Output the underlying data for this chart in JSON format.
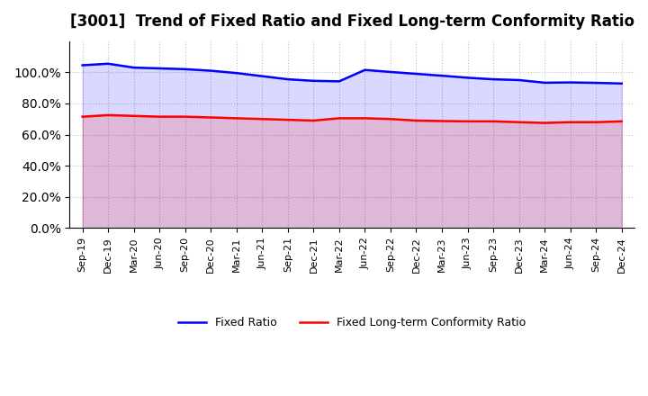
{
  "title": "[3001]  Trend of Fixed Ratio and Fixed Long-term Conformity Ratio",
  "fixed_ratio": [
    104.5,
    105.5,
    103.0,
    102.5,
    102.0,
    101.0,
    99.5,
    97.5,
    95.5,
    94.5,
    94.2,
    101.5,
    100.2,
    99.0,
    97.8,
    96.5,
    95.5,
    95.0,
    93.3,
    93.5,
    93.2,
    92.8
  ],
  "fixed_lt_ratio": [
    71.5,
    72.5,
    72.0,
    71.5,
    71.5,
    71.0,
    70.5,
    70.0,
    69.5,
    69.0,
    70.5,
    70.5,
    70.0,
    69.0,
    68.7,
    68.5,
    68.5,
    68.0,
    67.5,
    68.0,
    68.0,
    68.5
  ],
  "x_labels": [
    "Sep-19",
    "Dec-19",
    "Mar-20",
    "Jun-20",
    "Sep-20",
    "Dec-20",
    "Mar-21",
    "Jun-21",
    "Sep-21",
    "Dec-21",
    "Mar-22",
    "Jun-22",
    "Sep-22",
    "Dec-22",
    "Mar-23",
    "Jun-23",
    "Sep-23",
    "Dec-23",
    "Mar-24",
    "Jun-24",
    "Sep-24",
    "Dec-24"
  ],
  "fixed_ratio_color": "#0000FF",
  "fixed_lt_ratio_color": "#FF0000",
  "background_color": "#FFFFFF",
  "grid_color": "#AAAAAA",
  "ylim_min": 0,
  "ylim_max": 120,
  "ytick_values": [
    0,
    20,
    40,
    60,
    80,
    100
  ],
  "legend_labels": [
    "Fixed Ratio",
    "Fixed Long-term Conformity Ratio"
  ]
}
